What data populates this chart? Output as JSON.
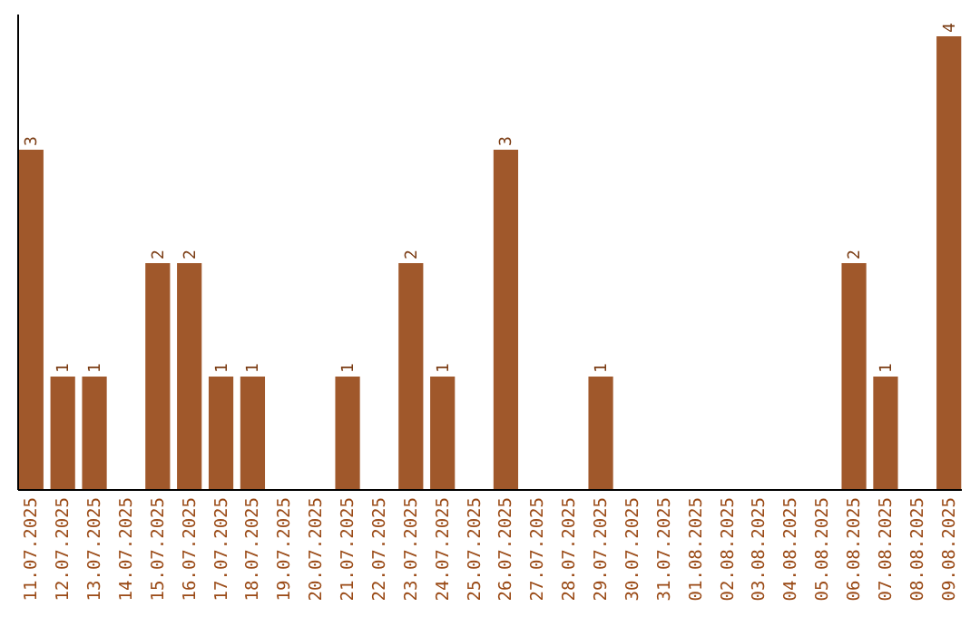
{
  "chart_data": {
    "type": "bar",
    "categories": [
      "11.07.2025",
      "12.07.2025",
      "13.07.2025",
      "14.07.2025",
      "15.07.2025",
      "16.07.2025",
      "17.07.2025",
      "18.07.2025",
      "19.07.2025",
      "20.07.2025",
      "21.07.2025",
      "22.07.2025",
      "23.07.2025",
      "24.07.2025",
      "25.07.2025",
      "26.07.2025",
      "27.07.2025",
      "28.07.2025",
      "29.07.2025",
      "30.07.2025",
      "31.07.2025",
      "01.08.2025",
      "02.08.2025",
      "03.08.2025",
      "04.08.2025",
      "05.08.2025",
      "06.08.2025",
      "07.08.2025",
      "08.08.2025",
      "09.08.2025"
    ],
    "values": [
      3,
      1,
      1,
      0,
      2,
      2,
      1,
      1,
      0,
      0,
      1,
      0,
      2,
      1,
      0,
      3,
      0,
      0,
      1,
      0,
      0,
      0,
      0,
      0,
      0,
      0,
      2,
      1,
      0,
      4
    ],
    "value_labels": [
      "3",
      "1",
      "1",
      null,
      "2",
      "2",
      "1",
      "1",
      null,
      null,
      "1",
      null,
      "2",
      "1",
      null,
      "3",
      null,
      null,
      "1",
      null,
      null,
      null,
      null,
      null,
      null,
      null,
      "2",
      "1",
      null,
      "4"
    ],
    "color": "#a0582b"
  }
}
